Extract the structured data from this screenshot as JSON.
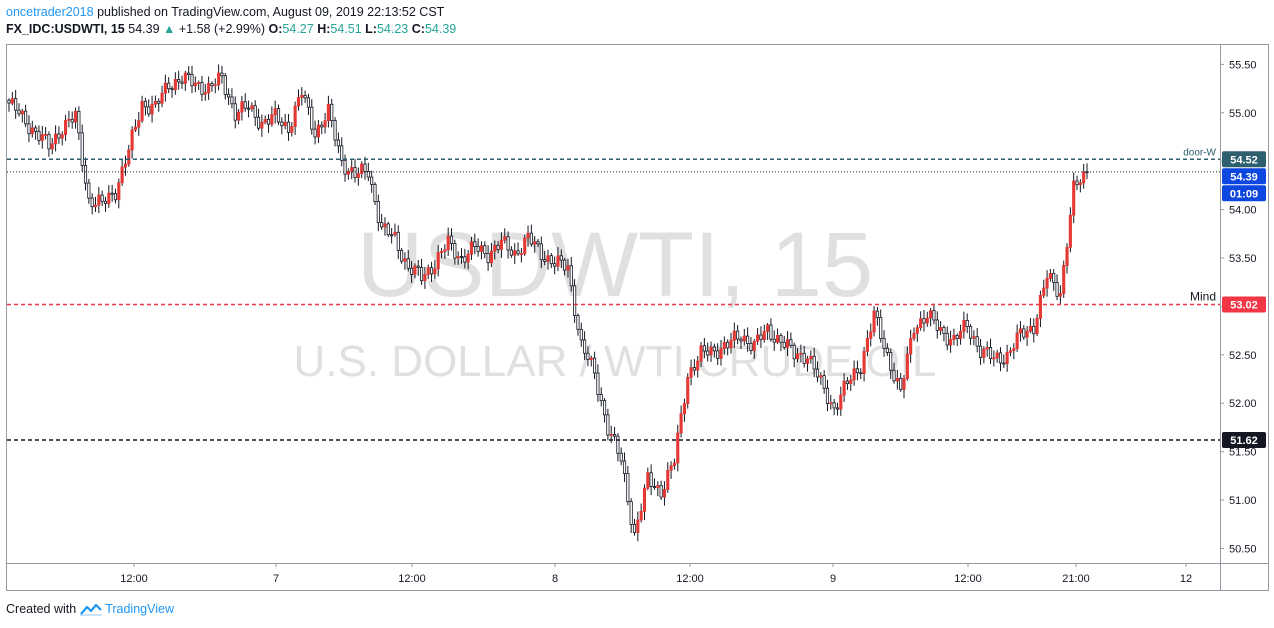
{
  "header": {
    "author": "oncetrader2018",
    "published_text": "published on TradingView.com, August 09, 2019 22:13:52 CST",
    "symbol": "FX_IDC:USDWTI, 15",
    "last": "54.39",
    "change_arrow": "▲",
    "change": "+1.58 (+2.99%)",
    "o_label": "O:",
    "o": "54.27",
    "h_label": "H:",
    "h": "54.51",
    "l_label": "L:",
    "l": "54.23",
    "c_label": "C:",
    "c": "54.39"
  },
  "watermark": {
    "line1": "USDWTI, 15",
    "line2": "U.S. DOLLAR / WTI CRUDE OIL"
  },
  "footer": {
    "created_with": "Created with",
    "brand": "TradingView"
  },
  "colors": {
    "up": "#e53935",
    "down": "#131722",
    "axis_blue": "#0d47e0",
    "teal_line": "#2e5f6e",
    "red_line": "#f23645",
    "black_line": "#131722"
  },
  "chart_data": {
    "type": "candlestick",
    "ylim": [
      50.35,
      55.7
    ],
    "y_ticks": [
      55.5,
      55.0,
      54.5,
      54.0,
      53.5,
      53.0,
      52.5,
      52.0,
      51.5,
      51.0,
      50.5
    ],
    "y_tick_labels": [
      "55.50",
      "55.00",
      "54.50",
      "54.00",
      "53.50",
      "53.00",
      "52.50",
      "52.00",
      "51.50",
      "51.00",
      "50.50"
    ],
    "x_tick_labels": [
      "12:00",
      "7",
      "12:00",
      "8",
      "12:00",
      "9",
      "12:00",
      "21:00",
      "12"
    ],
    "horizontal_lines": [
      {
        "label": "door-W",
        "value": 54.52,
        "style": "dashed",
        "color": "#2e5f6e"
      },
      {
        "label": "",
        "value": 54.39,
        "style": "dotted",
        "color": "#131722"
      },
      {
        "label": "Mind",
        "value": 53.02,
        "style": "dashed",
        "color": "#f23645"
      },
      {
        "label": "",
        "value": 51.62,
        "style": "dashed",
        "color": "#131722"
      }
    ],
    "price_badges": [
      {
        "text": "54.52",
        "value": 54.52,
        "color": "#2e5f6e"
      },
      {
        "text": "54.39",
        "value": 54.39,
        "color": "#0d47e0"
      },
      {
        "text": "01:09",
        "value": 54.19,
        "color": "#0d47e0"
      },
      {
        "text": "53.02",
        "value": 53.02,
        "color": "#f23645"
      },
      {
        "text": "51.62",
        "value": 51.62,
        "color": "#131722"
      }
    ],
    "anchors": [
      55.1,
      54.95,
      54.8,
      54.65,
      54.85,
      54.95,
      54.1,
      54.05,
      54.2,
      54.6,
      55.1,
      55.05,
      55.3,
      55.35,
      55.3,
      55.25,
      55.35,
      55.0,
      55.05,
      54.9,
      54.95,
      54.85,
      55.2,
      54.8,
      55.0,
      54.5,
      54.35,
      54.4,
      53.8,
      53.7,
      53.4,
      53.3,
      53.45,
      53.65,
      53.5,
      53.6,
      53.55,
      53.65,
      53.55,
      53.7,
      53.55,
      53.45,
      53.4,
      52.6,
      52.3,
      51.75,
      51.4,
      50.65,
      51.2,
      51.1,
      51.4,
      52.3,
      52.5,
      52.55,
      52.6,
      52.7,
      52.6,
      52.75,
      52.65,
      52.5,
      52.5,
      52.2,
      51.95,
      52.2,
      52.4,
      52.9,
      52.5,
      52.1,
      52.8,
      52.9,
      52.75,
      52.65,
      52.8,
      52.55,
      52.45,
      52.5,
      52.7,
      52.8,
      53.3,
      53.15,
      54.2,
      54.39
    ]
  }
}
